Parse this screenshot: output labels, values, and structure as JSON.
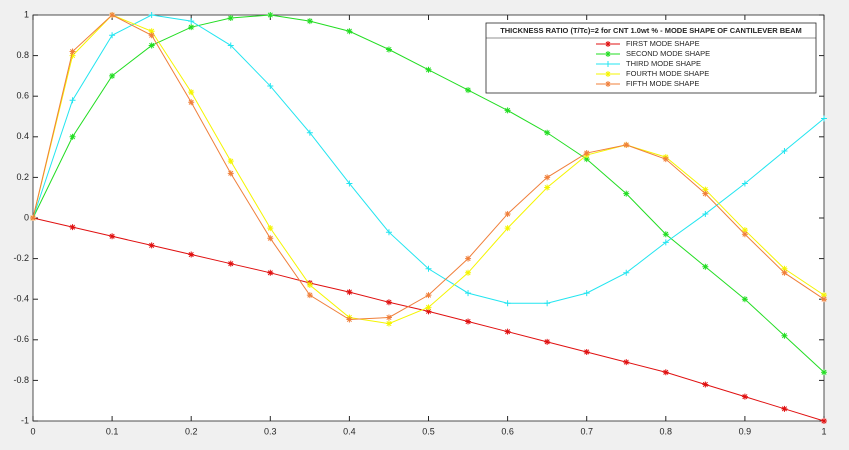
{
  "chart_data": {
    "type": "line",
    "x": [
      0,
      0.05,
      0.1,
      0.15,
      0.2,
      0.25,
      0.3,
      0.35,
      0.4,
      0.45,
      0.5,
      0.55,
      0.6,
      0.65,
      0.7,
      0.75,
      0.8,
      0.85,
      0.9,
      0.95,
      1
    ],
    "series": [
      {
        "name": "FIRST MODE SHAPE",
        "color": "#e01010",
        "marker": "*",
        "values": [
          0,
          -0.045,
          -0.09,
          -0.135,
          -0.18,
          -0.225,
          -0.27,
          -0.32,
          -0.365,
          -0.415,
          -0.46,
          -0.51,
          -0.56,
          -0.61,
          -0.66,
          -0.71,
          -0.76,
          -0.82,
          -0.88,
          -0.94,
          -1
        ]
      },
      {
        "name": "SECOND MODE SHAPE",
        "color": "#22dd22",
        "marker": "*",
        "values": [
          0,
          0.4,
          0.7,
          0.85,
          0.94,
          0.985,
          1,
          0.97,
          0.92,
          0.83,
          0.73,
          0.63,
          0.53,
          0.42,
          0.29,
          0.12,
          -0.08,
          -0.24,
          -0.4,
          -0.58,
          -0.76
        ]
      },
      {
        "name": "THIRD MODE SHAPE",
        "color": "#22e5f0",
        "marker": "+",
        "values": [
          0,
          0.58,
          0.9,
          1,
          0.97,
          0.85,
          0.65,
          0.42,
          0.17,
          -0.07,
          -0.25,
          -0.37,
          -0.42,
          -0.42,
          -0.37,
          -0.27,
          -0.12,
          0.02,
          0.17,
          0.33,
          0.49
        ]
      },
      {
        "name": "FOURTH MODE SHAPE",
        "color": "#f5f500",
        "marker": "*",
        "values": [
          0,
          0.8,
          1,
          0.92,
          0.62,
          0.28,
          -0.05,
          -0.33,
          -0.49,
          -0.52,
          -0.44,
          -0.27,
          -0.05,
          0.15,
          0.31,
          0.36,
          0.3,
          0.14,
          -0.06,
          -0.25,
          -0.38
        ]
      },
      {
        "name": "FIFTH MODE SHAPE",
        "color": "#f07f3a",
        "marker": "*",
        "values": [
          0,
          0.82,
          1,
          0.9,
          0.57,
          0.22,
          -0.1,
          -0.38,
          -0.5,
          -0.49,
          -0.38,
          -0.2,
          0.02,
          0.2,
          0.32,
          0.36,
          0.29,
          0.12,
          -0.08,
          -0.27,
          -0.4
        ]
      }
    ],
    "legend_title": "THICKNESS RATIO (T/Tc)=2 for CNT 1.0wt % - MODE SHAPE OF CANTILEVER BEAM",
    "xlim": [
      0,
      1
    ],
    "xticks": [
      0,
      0.1,
      0.2,
      0.3,
      0.4,
      0.5,
      0.6,
      0.7,
      0.8,
      0.9,
      1
    ],
    "ylim": [
      -1,
      1
    ],
    "yticks": [
      -1,
      -0.8,
      -0.6,
      -0.4,
      -0.2,
      0,
      0.2,
      0.4,
      0.6,
      0.8,
      1
    ],
    "grid": false,
    "legend": "northeast"
  }
}
